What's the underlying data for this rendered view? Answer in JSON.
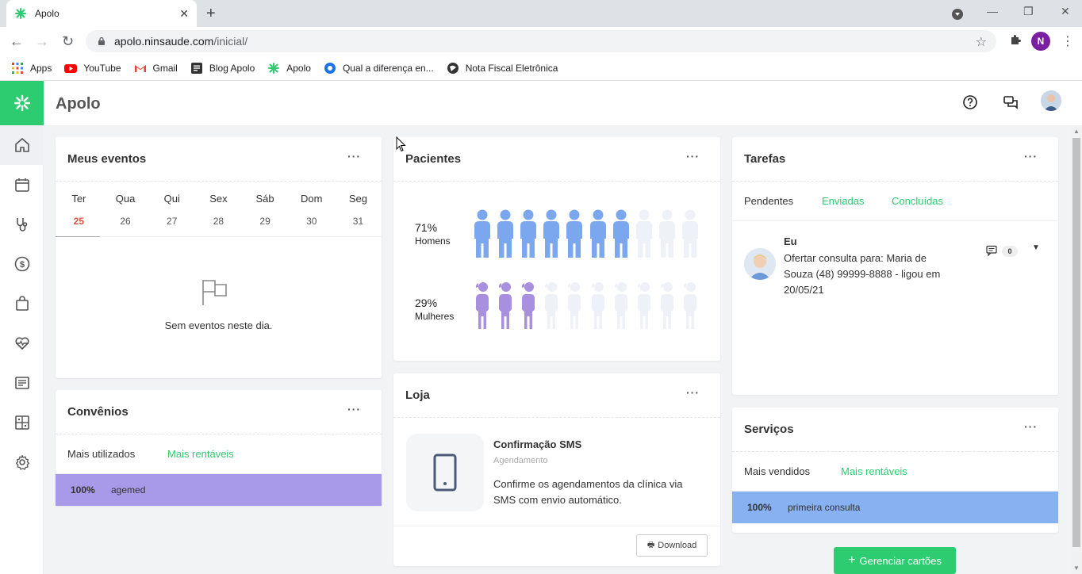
{
  "browser": {
    "tab_title": "Apolo",
    "url_host": "apolo.ninsaude.com",
    "url_path": "/inicial/",
    "profile_initial": "N",
    "bookmarks": [
      {
        "label": "Apps",
        "icon": "apps-grid-icon"
      },
      {
        "label": "YouTube",
        "icon": "youtube-icon"
      },
      {
        "label": "Gmail",
        "icon": "gmail-icon"
      },
      {
        "label": "Blog Apolo",
        "icon": "blog-icon"
      },
      {
        "label": "Apolo",
        "icon": "apolo-icon"
      },
      {
        "label": "Qual a diferença en...",
        "icon": "globe-blue-icon"
      },
      {
        "label": "Nota Fiscal Eletrônica",
        "icon": "globe-dark-icon"
      }
    ]
  },
  "app": {
    "title": "Apolo",
    "accent": "#2ecc71"
  },
  "sidebar": {
    "items": [
      {
        "name": "home",
        "icon": "home-icon",
        "active": true
      },
      {
        "name": "calendar",
        "icon": "calendar-icon"
      },
      {
        "name": "stethoscope",
        "icon": "stethoscope-icon"
      },
      {
        "name": "finance",
        "icon": "dollar-icon"
      },
      {
        "name": "store",
        "icon": "shopping-bag-icon"
      },
      {
        "name": "health",
        "icon": "heart-pulse-icon"
      },
      {
        "name": "reports",
        "icon": "document-icon"
      },
      {
        "name": "dashboard",
        "icon": "dashboard-icon"
      },
      {
        "name": "settings",
        "icon": "gear-icon"
      }
    ]
  },
  "eventos": {
    "title": "Meus eventos",
    "more": "···",
    "days": [
      {
        "name": "Ter",
        "date": "25",
        "today": true
      },
      {
        "name": "Qua",
        "date": "26"
      },
      {
        "name": "Qui",
        "date": "27"
      },
      {
        "name": "Sex",
        "date": "28"
      },
      {
        "name": "Sáb",
        "date": "29"
      },
      {
        "name": "Dom",
        "date": "30"
      },
      {
        "name": "Seg",
        "date": "31"
      }
    ],
    "empty_text": "Sem eventos neste dia."
  },
  "convenios": {
    "title": "Convênios",
    "more": "···",
    "tabs": [
      "Mais utilizados",
      "Mais rentáveis"
    ],
    "rows": [
      {
        "pct": "100%",
        "label": "agemed",
        "color": "#a89ae8"
      }
    ]
  },
  "pacientes": {
    "title": "Pacientes",
    "more": "···",
    "homens": {
      "pct": "71%",
      "label": "Homens",
      "filled": 7,
      "total": 10,
      "color": "#7aa7ee"
    },
    "mulheres": {
      "pct": "29%",
      "label": "Mulheres",
      "filled": 3,
      "total": 10,
      "color": "#a98fe0"
    }
  },
  "loja": {
    "title": "Loja",
    "more": "···",
    "product_name": "Confirmação SMS",
    "product_category": "Agendamento",
    "product_desc": "Confirme os agendamentos da clínica via SMS com envio automático.",
    "download_label": "Download"
  },
  "tarefas": {
    "title": "Tarefas",
    "more": "···",
    "tabs": [
      "Pendentes",
      "Enviadas",
      "Concluídas"
    ],
    "task": {
      "who": "Eu",
      "text": "Ofertar consulta para: Maria de Souza (48) 99999-8888 - ligou em 20/05/21",
      "comments": "0"
    }
  },
  "servicos": {
    "title": "Serviços",
    "more": "···",
    "tabs": [
      "Mais vendidos",
      "Mais rentáveis"
    ],
    "rows": [
      {
        "pct": "100%",
        "label": "primeira consulta",
        "color": "#87b1f0"
      }
    ]
  },
  "actions": {
    "manage_cards": "Gerenciar cartões"
  }
}
